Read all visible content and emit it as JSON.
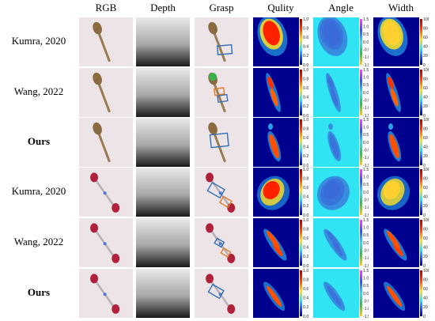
{
  "columns": [
    "RGB",
    "Depth",
    "Grasp",
    "Qulity",
    "Angle",
    "Width"
  ],
  "rows": [
    {
      "label": "Kumra, 2020",
      "bold": false,
      "object": "spoon",
      "method": "kumra"
    },
    {
      "label": "Wang, 2022",
      "bold": false,
      "object": "spoon",
      "method": "wang"
    },
    {
      "label": "Ours",
      "bold": true,
      "object": "spoon",
      "method": "ours"
    },
    {
      "label": "Kumra, 2020",
      "bold": false,
      "object": "brush",
      "method": "kumra"
    },
    {
      "label": "Wang, 2022",
      "bold": false,
      "object": "brush",
      "method": "wang"
    },
    {
      "label": "Ours",
      "bold": true,
      "object": "brush",
      "method": "ours"
    }
  ],
  "colorbars": {
    "quality": [
      "1.0",
      "0.8",
      "0.6",
      "0.4",
      "0.2",
      "0.0"
    ],
    "angle": [
      "1.5",
      "1.0",
      "0.5",
      "0.0",
      "-0.5",
      "-1.0",
      "-1.5"
    ],
    "width": [
      "100",
      "80",
      "60",
      "40",
      "20",
      "0"
    ]
  },
  "colors": {
    "grasp_box": "#2f6fb5",
    "grasp_box_alt": "#e07a2a",
    "cyan_bg": "#30e4f4",
    "dark_blue_bg": "#00008f"
  }
}
